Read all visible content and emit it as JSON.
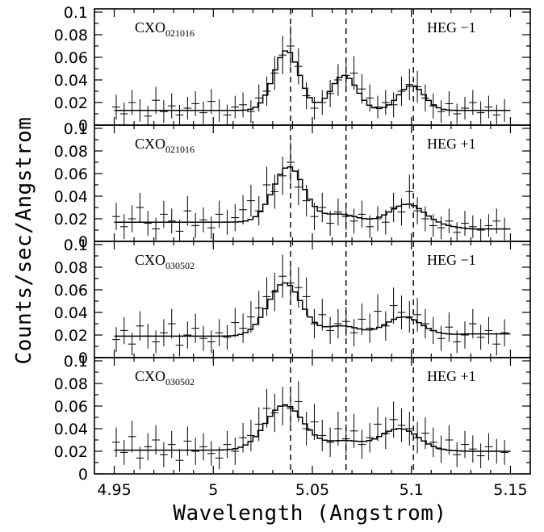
{
  "chart_data": {
    "type": "line",
    "xlabel": "Wavelength (Angstrom)",
    "ylabel": "Counts/sec/Angstrom",
    "xlim": [
      4.94,
      5.16
    ],
    "xticks": [
      4.95,
      5,
      5.05,
      5.1,
      5.15
    ],
    "xtick_labels": [
      "4.95",
      "5",
      "5.05",
      "5.1",
      "5.15"
    ],
    "ylim": [
      0,
      0.1
    ],
    "yticks": [
      0,
      0.02,
      0.04,
      0.06,
      0.08,
      0.1
    ],
    "ytick_labels_top": [
      "0",
      "0.02",
      "0.04",
      "0.06",
      "0.08",
      "0.1"
    ],
    "ytick_labels_other": [
      "0",
      "0.02",
      "0.04",
      "0.06",
      "0.08",
      "0.1"
    ],
    "reference_lines_x": [
      5.039,
      5.067,
      5.101
    ],
    "panels": [
      {
        "obs": "CXO",
        "obs_sub": "021016",
        "grating": "HEG −1",
        "continuum": 0.013,
        "lines": [
          [
            5.037,
            0.053,
            0.0065
          ],
          [
            5.066,
            0.031,
            0.0065
          ],
          [
            5.1,
            0.022,
            0.0065
          ]
        ],
        "data_x": [
          4.951,
          4.955,
          4.959,
          4.963,
          4.967,
          4.971,
          4.975,
          4.979,
          4.983,
          4.987,
          4.991,
          4.995,
          4.999,
          5.003,
          5.007,
          5.011,
          5.015,
          5.019,
          5.023,
          5.027,
          5.031,
          5.035,
          5.039,
          5.043,
          5.047,
          5.051,
          5.055,
          5.059,
          5.063,
          5.067,
          5.071,
          5.075,
          5.079,
          5.083,
          5.087,
          5.091,
          5.095,
          5.099,
          5.103,
          5.107,
          5.111,
          5.115,
          5.119,
          5.123,
          5.127,
          5.131,
          5.135,
          5.139,
          5.143,
          5.147
        ],
        "data_y": [
          0.016,
          0.01,
          0.02,
          0.013,
          0.008,
          0.022,
          0.012,
          0.017,
          0.009,
          0.015,
          0.019,
          0.011,
          0.021,
          0.013,
          0.009,
          0.016,
          0.018,
          0.012,
          0.024,
          0.03,
          0.046,
          0.062,
          0.07,
          0.052,
          0.026,
          0.015,
          0.02,
          0.028,
          0.04,
          0.044,
          0.046,
          0.032,
          0.024,
          0.016,
          0.02,
          0.018,
          0.03,
          0.036,
          0.034,
          0.024,
          0.017,
          0.012,
          0.019,
          0.01,
          0.015,
          0.02,
          0.011,
          0.016,
          0.009,
          0.013
        ],
        "data_err": [
          0.011,
          0.01,
          0.011,
          0.01,
          0.009,
          0.012,
          0.01,
          0.011,
          0.009,
          0.01,
          0.011,
          0.01,
          0.011,
          0.01,
          0.009,
          0.01,
          0.011,
          0.01,
          0.012,
          0.013,
          0.015,
          0.017,
          0.018,
          0.016,
          0.012,
          0.01,
          0.011,
          0.012,
          0.014,
          0.015,
          0.015,
          0.013,
          0.012,
          0.01,
          0.011,
          0.011,
          0.013,
          0.014,
          0.014,
          0.012,
          0.011,
          0.01,
          0.011,
          0.009,
          0.01,
          0.011,
          0.01,
          0.01,
          0.009,
          0.01
        ]
      },
      {
        "obs": "CXO",
        "obs_sub": "021016",
        "grating": "HEG +1",
        "continuum": 0.017,
        "lines": [
          [
            5.038,
            0.049,
            0.0078
          ],
          [
            5.064,
            0.007,
            0.0085
          ],
          [
            5.098,
            0.016,
            0.0085
          ]
        ],
        "continuum_end": 0.011,
        "data_x": [
          4.951,
          4.955,
          4.959,
          4.963,
          4.967,
          4.971,
          4.975,
          4.979,
          4.983,
          4.987,
          4.991,
          4.995,
          4.999,
          5.003,
          5.007,
          5.011,
          5.015,
          5.019,
          5.023,
          5.027,
          5.031,
          5.035,
          5.039,
          5.043,
          5.047,
          5.051,
          5.055,
          5.059,
          5.063,
          5.067,
          5.071,
          5.075,
          5.079,
          5.083,
          5.087,
          5.091,
          5.095,
          5.099,
          5.103,
          5.107,
          5.111,
          5.115,
          5.119,
          5.123,
          5.127,
          5.131,
          5.135,
          5.139,
          5.143,
          5.147
        ],
        "data_y": [
          0.022,
          0.013,
          0.02,
          0.03,
          0.016,
          0.011,
          0.024,
          0.018,
          0.009,
          0.027,
          0.014,
          0.019,
          0.012,
          0.024,
          0.017,
          0.021,
          0.028,
          0.036,
          0.027,
          0.05,
          0.044,
          0.058,
          0.07,
          0.048,
          0.036,
          0.022,
          0.03,
          0.016,
          0.026,
          0.022,
          0.018,
          0.024,
          0.013,
          0.02,
          0.017,
          0.03,
          0.026,
          0.044,
          0.027,
          0.02,
          0.014,
          0.012,
          0.018,
          0.008,
          0.016,
          0.013,
          0.01,
          0.014,
          0.018,
          0.011
        ],
        "data_err": [
          0.012,
          0.011,
          0.012,
          0.013,
          0.011,
          0.01,
          0.012,
          0.011,
          0.01,
          0.013,
          0.011,
          0.011,
          0.01,
          0.012,
          0.011,
          0.012,
          0.013,
          0.014,
          0.013,
          0.016,
          0.015,
          0.017,
          0.018,
          0.016,
          0.014,
          0.012,
          0.013,
          0.011,
          0.012,
          0.012,
          0.011,
          0.012,
          0.01,
          0.011,
          0.011,
          0.013,
          0.012,
          0.015,
          0.012,
          0.011,
          0.01,
          0.01,
          0.011,
          0.009,
          0.011,
          0.01,
          0.01,
          0.01,
          0.011,
          0.01
        ]
      },
      {
        "obs": "CXO",
        "obs_sub": "030502",
        "grating": "HEG −1",
        "continuum": 0.019,
        "lines": [
          [
            5.036,
            0.047,
            0.0085
          ],
          [
            5.065,
            0.009,
            0.009
          ],
          [
            5.096,
            0.017,
            0.009
          ]
        ],
        "continuum_end": 0.021,
        "data_x": [
          4.951,
          4.955,
          4.959,
          4.963,
          4.967,
          4.971,
          4.975,
          4.979,
          4.983,
          4.987,
          4.991,
          4.995,
          4.999,
          5.003,
          5.007,
          5.011,
          5.015,
          5.019,
          5.023,
          5.027,
          5.031,
          5.035,
          5.039,
          5.043,
          5.047,
          5.051,
          5.055,
          5.059,
          5.063,
          5.067,
          5.071,
          5.075,
          5.079,
          5.083,
          5.087,
          5.091,
          5.095,
          5.099,
          5.103,
          5.107,
          5.111,
          5.115,
          5.119,
          5.123,
          5.127,
          5.131,
          5.135,
          5.139,
          5.143,
          5.147
        ],
        "data_y": [
          0.016,
          0.024,
          0.012,
          0.028,
          0.019,
          0.014,
          0.022,
          0.03,
          0.011,
          0.02,
          0.026,
          0.017,
          0.014,
          0.022,
          0.018,
          0.031,
          0.026,
          0.036,
          0.044,
          0.054,
          0.058,
          0.072,
          0.066,
          0.062,
          0.054,
          0.03,
          0.038,
          0.024,
          0.03,
          0.032,
          0.022,
          0.034,
          0.026,
          0.041,
          0.028,
          0.046,
          0.04,
          0.036,
          0.038,
          0.03,
          0.024,
          0.017,
          0.027,
          0.014,
          0.02,
          0.03,
          0.018,
          0.024,
          0.012,
          0.022
        ],
        "data_err": [
          0.011,
          0.012,
          0.01,
          0.013,
          0.011,
          0.01,
          0.012,
          0.013,
          0.01,
          0.012,
          0.013,
          0.011,
          0.01,
          0.012,
          0.011,
          0.013,
          0.013,
          0.014,
          0.015,
          0.017,
          0.017,
          0.019,
          0.018,
          0.018,
          0.017,
          0.013,
          0.014,
          0.012,
          0.013,
          0.013,
          0.012,
          0.014,
          0.013,
          0.015,
          0.013,
          0.016,
          0.015,
          0.014,
          0.015,
          0.013,
          0.012,
          0.011,
          0.013,
          0.01,
          0.012,
          0.013,
          0.011,
          0.012,
          0.01,
          0.012
        ]
      },
      {
        "obs": "CXO",
        "obs_sub": "030502",
        "grating": "HEG +1",
        "continuum": 0.021,
        "lines": [
          [
            5.036,
            0.04,
            0.0095
          ],
          [
            5.066,
            0.008,
            0.0095
          ],
          [
            5.094,
            0.019,
            0.0095
          ]
        ],
        "continuum_end": 0.02,
        "data_x": [
          4.951,
          4.955,
          4.959,
          4.963,
          4.967,
          4.971,
          4.975,
          4.979,
          4.983,
          4.987,
          4.991,
          4.995,
          4.999,
          5.003,
          5.007,
          5.011,
          5.015,
          5.019,
          5.023,
          5.027,
          5.031,
          5.035,
          5.039,
          5.043,
          5.047,
          5.051,
          5.055,
          5.059,
          5.063,
          5.067,
          5.071,
          5.075,
          5.079,
          5.083,
          5.087,
          5.091,
          5.095,
          5.099,
          5.103,
          5.107,
          5.111,
          5.115,
          5.119,
          5.123,
          5.127,
          5.131,
          5.135,
          5.139,
          5.143,
          5.147
        ],
        "data_y": [
          0.028,
          0.019,
          0.033,
          0.014,
          0.024,
          0.03,
          0.017,
          0.026,
          0.012,
          0.029,
          0.02,
          0.024,
          0.018,
          0.014,
          0.026,
          0.02,
          0.032,
          0.034,
          0.044,
          0.058,
          0.054,
          0.06,
          0.058,
          0.064,
          0.04,
          0.046,
          0.034,
          0.028,
          0.04,
          0.031,
          0.038,
          0.026,
          0.032,
          0.044,
          0.036,
          0.048,
          0.043,
          0.04,
          0.032,
          0.036,
          0.028,
          0.022,
          0.03,
          0.017,
          0.026,
          0.022,
          0.016,
          0.024,
          0.02,
          0.019
        ],
        "data_err": [
          0.013,
          0.011,
          0.014,
          0.01,
          0.012,
          0.013,
          0.011,
          0.012,
          0.01,
          0.013,
          0.012,
          0.012,
          0.011,
          0.01,
          0.012,
          0.012,
          0.013,
          0.014,
          0.015,
          0.017,
          0.017,
          0.017,
          0.017,
          0.018,
          0.015,
          0.016,
          0.014,
          0.013,
          0.015,
          0.013,
          0.015,
          0.013,
          0.013,
          0.015,
          0.014,
          0.016,
          0.015,
          0.015,
          0.014,
          0.014,
          0.013,
          0.012,
          0.013,
          0.011,
          0.012,
          0.012,
          0.011,
          0.012,
          0.011,
          0.011
        ]
      }
    ]
  }
}
